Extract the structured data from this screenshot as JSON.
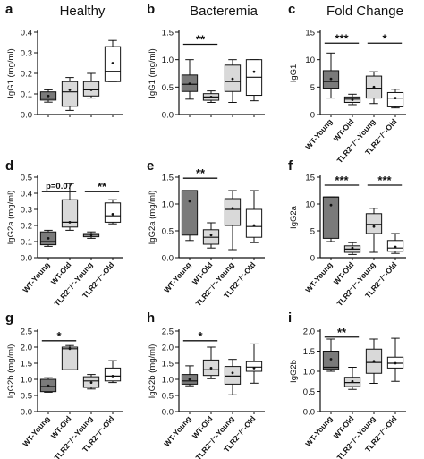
{
  "chart_data": {
    "type": "box",
    "columns": [
      {
        "title": "Healthy"
      },
      {
        "title": "Bacteremia"
      },
      {
        "title": "Fold Change"
      }
    ],
    "groups": [
      "WT-Young",
      "WT-Old",
      "TLR2⁻/⁻-Young",
      "TLR2⁻/⁻-Old"
    ],
    "box_fills": [
      "#7a7a7a",
      "#d9d9d9",
      "#d9d9d9",
      "#ffffff"
    ],
    "panels": [
      {
        "letter": "a",
        "ylabel": "IgG1 (mg/ml)",
        "ylim": [
          0,
          0.4
        ],
        "yticks": [
          "0.0",
          "0.1",
          "0.2",
          "0.3",
          "0.4"
        ],
        "show_xlabels": false,
        "boxes": [
          {
            "min": 0.06,
            "q1": 0.07,
            "median": 0.08,
            "q3": 0.11,
            "max": 0.12,
            "mean": 0.09
          },
          {
            "min": 0.02,
            "q1": 0.04,
            "median": 0.11,
            "q3": 0.16,
            "max": 0.18,
            "mean": 0.12
          },
          {
            "min": 0.08,
            "q1": 0.09,
            "median": 0.12,
            "q3": 0.16,
            "max": 0.2,
            "mean": 0.12
          },
          {
            "min": 0.16,
            "q1": 0.16,
            "median": 0.21,
            "q3": 0.33,
            "max": 0.36,
            "mean": 0.25
          }
        ],
        "sig": []
      },
      {
        "letter": "b",
        "ylabel": "IgG1 (mg/ml)",
        "ylim": [
          0,
          1.5
        ],
        "yticks": [
          "0.0",
          "0.5",
          "1.0",
          "1.5"
        ],
        "show_xlabels": false,
        "boxes": [
          {
            "min": 0.28,
            "q1": 0.42,
            "median": 0.55,
            "q3": 0.72,
            "max": 1.0,
            "mean": 0.56
          },
          {
            "min": 0.22,
            "q1": 0.26,
            "median": 0.32,
            "q3": 0.38,
            "max": 0.43,
            "mean": 0.32
          },
          {
            "min": 0.22,
            "q1": 0.42,
            "median": 0.6,
            "q3": 0.9,
            "max": 1.0,
            "mean": 0.65
          },
          {
            "min": 0.25,
            "q1": 0.35,
            "median": 0.68,
            "q3": 1.0,
            "max": 1.0,
            "mean": 0.78
          }
        ],
        "sig": [
          {
            "from": 0,
            "to": 1,
            "label": "**",
            "y": 1.28
          }
        ]
      },
      {
        "letter": "c",
        "ylabel": "IgG1",
        "ylim": [
          0,
          15
        ],
        "yticks": [
          "0",
          "5",
          "10",
          "15"
        ],
        "show_xlabels": true,
        "boxes": [
          {
            "min": 3.0,
            "q1": 4.8,
            "median": 6.0,
            "q3": 8.0,
            "max": 11.2,
            "mean": 6.5
          },
          {
            "min": 1.8,
            "q1": 2.2,
            "median": 2.8,
            "q3": 3.2,
            "max": 3.7,
            "mean": 2.7
          },
          {
            "min": 2.0,
            "q1": 3.0,
            "median": 4.8,
            "q3": 7.0,
            "max": 7.8,
            "mean": 5.0
          },
          {
            "min": 1.2,
            "q1": 1.4,
            "median": 3.0,
            "q3": 4.0,
            "max": 4.6,
            "mean": 3.0
          }
        ],
        "sig": [
          {
            "from": 0,
            "to": 1,
            "label": "***",
            "y": 13.0
          },
          {
            "from": 2,
            "to": 3,
            "label": "*",
            "y": 13.0
          }
        ]
      },
      {
        "letter": "d",
        "ylabel": "IgG2a (mg/ml)",
        "ylim": [
          0,
          0.5
        ],
        "yticks": [
          "0.0",
          "0.1",
          "0.2",
          "0.3",
          "0.4",
          "0.5"
        ],
        "show_xlabels": true,
        "boxes": [
          {
            "min": 0.07,
            "q1": 0.08,
            "median": 0.1,
            "q3": 0.16,
            "max": 0.17,
            "mean": 0.12
          },
          {
            "min": 0.17,
            "q1": 0.19,
            "median": 0.22,
            "q3": 0.36,
            "max": 0.46,
            "mean": 0.22
          },
          {
            "min": 0.12,
            "q1": 0.13,
            "median": 0.14,
            "q3": 0.15,
            "max": 0.16,
            "mean": 0.14
          },
          {
            "min": 0.21,
            "q1": 0.22,
            "median": 0.26,
            "q3": 0.34,
            "max": 0.36,
            "mean": 0.27
          }
        ],
        "sig": [
          {
            "from": 0,
            "to": 1,
            "label": "p=0.07",
            "y": 0.41
          },
          {
            "from": 2,
            "to": 3,
            "label": "**",
            "y": 0.41
          }
        ]
      },
      {
        "letter": "e",
        "ylabel": "IgG2a (mg/ml)",
        "ylim": [
          0,
          1.5
        ],
        "yticks": [
          "0.0",
          "0.5",
          "1.0",
          "1.5"
        ],
        "show_xlabels": true,
        "boxes": [
          {
            "min": 0.32,
            "q1": 0.42,
            "median": 1.25,
            "q3": 1.25,
            "max": 1.25,
            "mean": 1.05
          },
          {
            "min": 0.18,
            "q1": 0.25,
            "median": 0.38,
            "q3": 0.52,
            "max": 0.65,
            "mean": 0.42
          },
          {
            "min": 0.15,
            "q1": 0.6,
            "median": 0.9,
            "q3": 1.1,
            "max": 1.25,
            "mean": 0.92
          },
          {
            "min": 0.28,
            "q1": 0.38,
            "median": 0.58,
            "q3": 0.9,
            "max": 1.25,
            "mean": 0.6
          }
        ],
        "sig": [
          {
            "from": 0,
            "to": 1,
            "label": "**",
            "y": 1.48
          }
        ]
      },
      {
        "letter": "f",
        "ylabel": "IgG2a",
        "ylim": [
          0,
          15
        ],
        "yticks": [
          "0",
          "5",
          "10",
          "15"
        ],
        "show_xlabels": true,
        "boxes": [
          {
            "min": 3.0,
            "q1": 3.6,
            "median": 11.3,
            "q3": 11.3,
            "max": 11.3,
            "mean": 9.8
          },
          {
            "min": 0.6,
            "q1": 1.0,
            "median": 1.6,
            "q3": 2.2,
            "max": 2.8,
            "mean": 1.8
          },
          {
            "min": 1.0,
            "q1": 4.5,
            "median": 6.2,
            "q3": 8.2,
            "max": 9.2,
            "mean": 5.8
          },
          {
            "min": 0.8,
            "q1": 1.2,
            "median": 1.8,
            "q3": 3.2,
            "max": 4.5,
            "mean": 2.0
          }
        ],
        "sig": [
          {
            "from": 0,
            "to": 1,
            "label": "***",
            "y": 13.5
          },
          {
            "from": 2,
            "to": 3,
            "label": "***",
            "y": 13.5
          }
        ]
      },
      {
        "letter": "g",
        "ylabel": "IgG2b (mg/ml)",
        "ylim": [
          0,
          2.5
        ],
        "yticks": [
          "0.0",
          "0.5",
          "1.0",
          "1.5",
          "2.0",
          "2.5"
        ],
        "show_xlabels": true,
        "boxes": [
          {
            "min": 0.6,
            "q1": 0.62,
            "median": 0.78,
            "q3": 1.0,
            "max": 1.05,
            "mean": 0.8
          },
          {
            "min": 1.3,
            "q1": 1.3,
            "median": 1.95,
            "q3": 2.0,
            "max": 2.05,
            "mean": 1.95
          },
          {
            "min": 0.7,
            "q1": 0.75,
            "median": 0.95,
            "q3": 1.08,
            "max": 1.15,
            "mean": 0.9
          },
          {
            "min": 0.9,
            "q1": 0.95,
            "median": 1.1,
            "q3": 1.35,
            "max": 1.58,
            "mean": 1.1
          }
        ],
        "sig": [
          {
            "from": 0,
            "to": 1,
            "label": "*",
            "y": 2.2
          }
        ]
      },
      {
        "letter": "h",
        "ylabel": "IgG2b (mg/ml)",
        "ylim": [
          0,
          2.5
        ],
        "yticks": [
          "0.0",
          "0.5",
          "1.0",
          "1.5",
          "2.0",
          "2.5"
        ],
        "show_xlabels": true,
        "boxes": [
          {
            "min": 0.8,
            "q1": 0.85,
            "median": 0.95,
            "q3": 1.15,
            "max": 1.42,
            "mean": 1.0
          },
          {
            "min": 1.02,
            "q1": 1.12,
            "median": 1.3,
            "q3": 1.6,
            "max": 2.0,
            "mean": 1.35
          },
          {
            "min": 0.52,
            "q1": 0.85,
            "median": 1.1,
            "q3": 1.4,
            "max": 1.62,
            "mean": 1.2
          },
          {
            "min": 0.88,
            "q1": 1.25,
            "median": 1.38,
            "q3": 1.55,
            "max": 2.1,
            "mean": 1.35
          }
        ],
        "sig": [
          {
            "from": 0,
            "to": 1,
            "label": "*",
            "y": 2.2
          }
        ]
      },
      {
        "letter": "i",
        "ylabel": "IgG2b",
        "ylim": [
          0,
          2.0
        ],
        "yticks": [
          "0.0",
          "0.5",
          "1.0",
          "1.5",
          "2.0"
        ],
        "show_xlabels": true,
        "boxes": [
          {
            "min": 1.0,
            "q1": 1.05,
            "median": 1.1,
            "q3": 1.5,
            "max": 1.8,
            "mean": 1.3
          },
          {
            "min": 0.55,
            "q1": 0.62,
            "median": 0.72,
            "q3": 0.85,
            "max": 1.1,
            "mean": 0.75
          },
          {
            "min": 0.7,
            "q1": 0.95,
            "median": 1.22,
            "q3": 1.55,
            "max": 1.8,
            "mean": 1.25
          },
          {
            "min": 0.75,
            "q1": 1.08,
            "median": 1.2,
            "q3": 1.35,
            "max": 1.82,
            "mean": 1.2
          }
        ],
        "sig": [
          {
            "from": 0,
            "to": 1,
            "label": "**",
            "y": 1.85
          }
        ]
      }
    ]
  }
}
